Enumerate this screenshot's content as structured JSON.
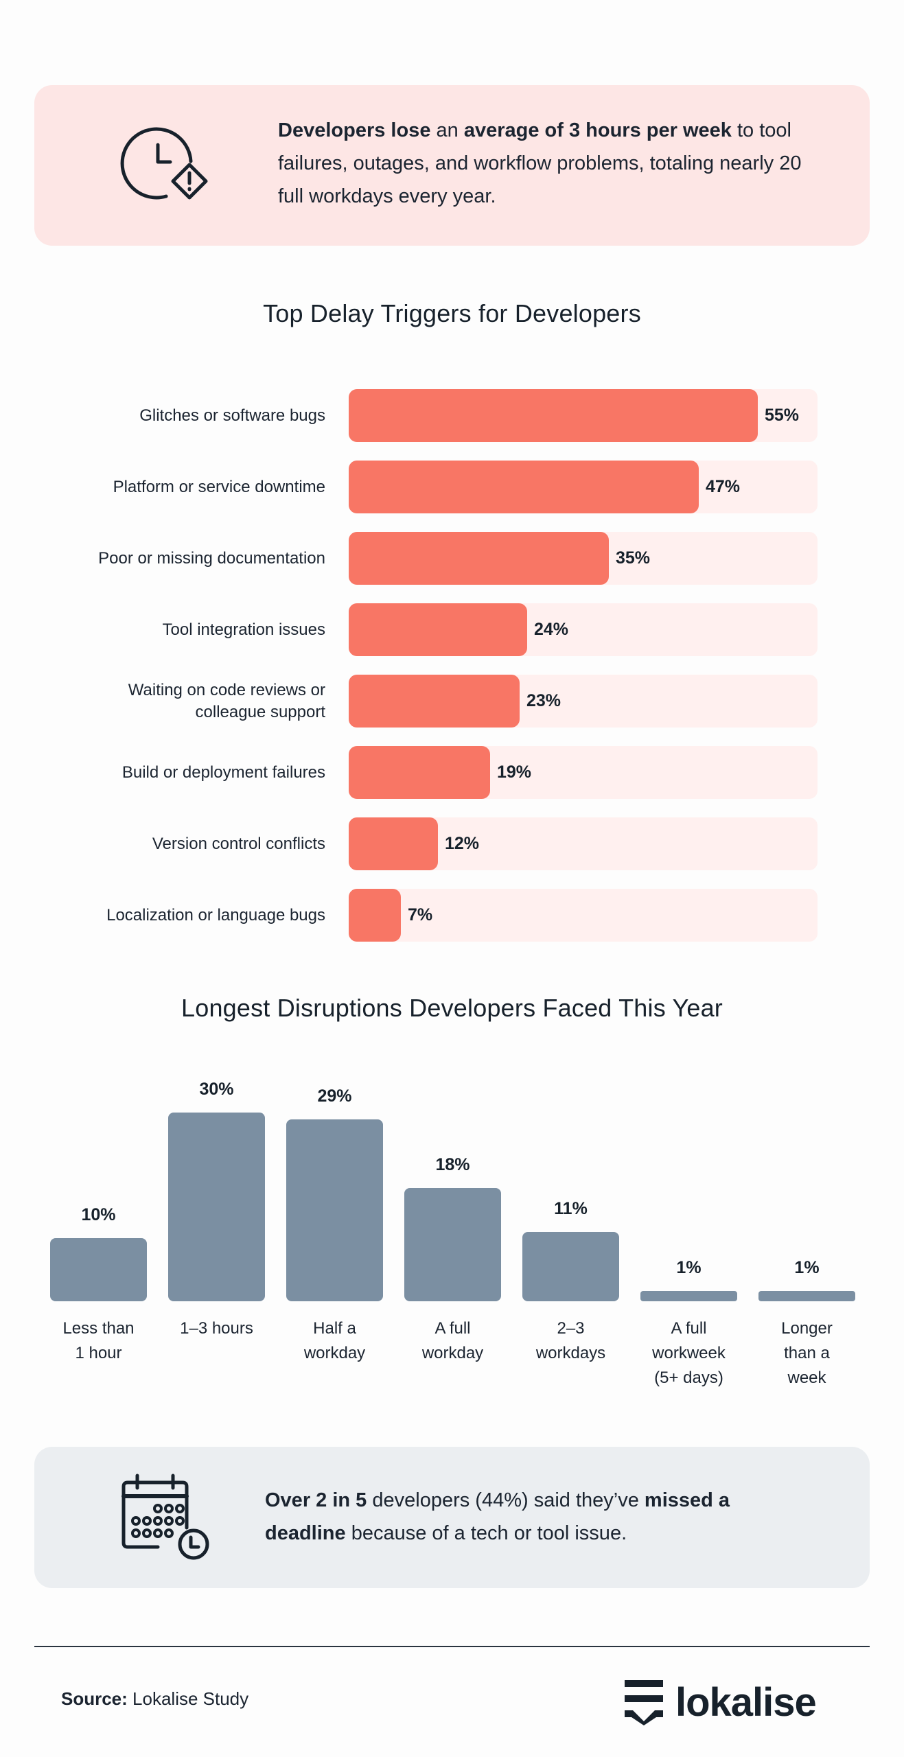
{
  "stat_callout": {
    "icon": "clock-warning-icon",
    "segments": [
      {
        "text": "Developers lose",
        "bold": true
      },
      {
        "text": " an ",
        "bold": false
      },
      {
        "text": "average of 3 hours per week",
        "bold": true
      },
      {
        "text": " to tool failures, outages, and workflow problems, totaling nearly 20 full workdays every year.",
        "bold": false
      }
    ]
  },
  "deadline_callout": {
    "icon": "calendar-clock-icon",
    "segments": [
      {
        "text": "Over 2 in 5",
        "bold": true
      },
      {
        "text": " developers (44%) said they’ve ",
        "bold": false
      },
      {
        "text": "missed a deadline",
        "bold": true
      },
      {
        "text": " because of a tech or tool issue.",
        "bold": false
      }
    ]
  },
  "colors": {
    "accent_bar": "#f87665",
    "accent_track": "#fff0ef",
    "neutral_bar": "#7b8fa2",
    "text": "#17212b"
  },
  "chart_data": [
    {
      "type": "bar",
      "orientation": "horizontal",
      "title": "Top Delay Triggers for Developers",
      "categories": [
        "Glitches or software bugs",
        "Platform or service downtime",
        "Poor or missing documentation",
        "Tool integration issues",
        "Waiting on code reviews or colleague support",
        "Build or deployment failures",
        "Version control conflicts",
        "Localization or language bugs"
      ],
      "values": [
        55,
        47,
        35,
        24,
        23,
        19,
        12,
        7
      ],
      "value_labels": [
        "55%",
        "47%",
        "35%",
        "24%",
        "23%",
        "19%",
        "12%",
        "7%"
      ],
      "unit": "%",
      "xlim": [
        0,
        63
      ],
      "grid": false,
      "xlabel": "",
      "ylabel": ""
    },
    {
      "type": "bar",
      "orientation": "vertical",
      "title": "Longest Disruptions Developers Faced This Year",
      "categories": [
        "Less than 1 hour",
        "1–3 hours",
        "Half a workday",
        "A full workday",
        "2–3 workdays",
        "A full workweek (5+ days)",
        "Longer than a week"
      ],
      "category_lines": [
        [
          "Less than",
          "1 hour"
        ],
        [
          "1–3 hours"
        ],
        [
          "Half a",
          "workday"
        ],
        [
          "A full",
          "workday"
        ],
        [
          "2–3",
          "workdays"
        ],
        [
          "A full",
          "workweek",
          "(5+ days)"
        ],
        [
          "Longer",
          "than a",
          "week"
        ]
      ],
      "values": [
        10,
        30,
        29,
        18,
        11,
        1,
        1
      ],
      "value_labels": [
        "10%",
        "30%",
        "29%",
        "18%",
        "11%",
        "1%",
        "1%"
      ],
      "unit": "%",
      "ylim": [
        0,
        30
      ],
      "grid": false,
      "xlabel": "",
      "ylabel": ""
    }
  ],
  "footer": {
    "source_label": "Source:",
    "source_value": " Lokalise Study",
    "logo_text": "lokalise",
    "logo_icon": "lokalise-logo-icon"
  }
}
